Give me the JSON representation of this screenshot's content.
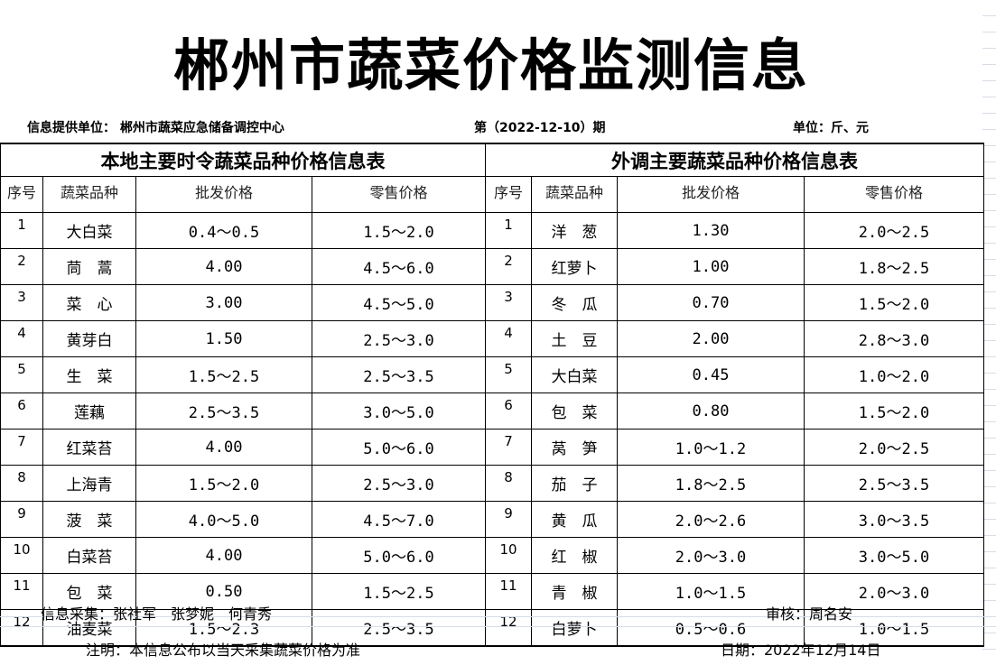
{
  "title": "郴州市蔬菜价格监测信息",
  "provider": "信息提供单位：  郴州市蔬菜应急储备调控中心",
  "period": "第（2022-12-10）期",
  "unit": "单位：斤、元",
  "local": {
    "title": "本地主要时令蔬菜品种价格信息表",
    "headers": [
      "序号",
      "蔬菜品种",
      "批发价格",
      "零售价格"
    ],
    "rows": [
      [
        "1",
        "大白菜",
        "0.4～0.5",
        "1.5～2.0"
      ],
      [
        "2",
        "茼　蒿",
        "4.00",
        "4.5～6.0"
      ],
      [
        "3",
        "菜　心",
        "3.00",
        "4.5～5.0"
      ],
      [
        "4",
        "黄芽白",
        "1.50",
        "2.5～3.0"
      ],
      [
        "5",
        "生　菜",
        "1.5～2.5",
        "2.5～3.5"
      ],
      [
        "6",
        "莲藕",
        "2.5～3.5",
        "3.0～5.0"
      ],
      [
        "7",
        "红菜苔",
        "4.00",
        "5.0～6.0"
      ],
      [
        "8",
        "上海青",
        "1.5～2.0",
        "2.5～3.0"
      ],
      [
        "9",
        "菠　菜",
        "4.0～5.0",
        "4.5～7.0"
      ],
      [
        "10",
        "白菜苔",
        "4.00",
        "5.0～6.0"
      ],
      [
        "11",
        "包　菜",
        "0.50",
        "1.5～2.5"
      ],
      [
        "12",
        "油麦菜",
        "1.5～2.3",
        "2.5～3.5"
      ]
    ]
  },
  "external": {
    "title": "外调主要蔬菜品种价格信息表",
    "headers": [
      "序号",
      "蔬菜品种",
      "批发价格",
      "零售价格"
    ],
    "rows": [
      [
        "1",
        "洋　葱",
        "1.30",
        "2.0～2.5"
      ],
      [
        "2",
        "红萝卜",
        "1.00",
        "1.8～2.5"
      ],
      [
        "3",
        "冬　瓜",
        "0.70",
        "1.5～2.0"
      ],
      [
        "4",
        "土　豆",
        "2.00",
        "2.8～3.0"
      ],
      [
        "5",
        "大白菜",
        "0.45",
        "1.0～2.0"
      ],
      [
        "6",
        "包　菜",
        "0.80",
        "1.5～2.0"
      ],
      [
        "7",
        "莴　笋",
        "1.0～1.2",
        "2.0～2.5"
      ],
      [
        "8",
        "茄　子",
        "1.8～2.5",
        "2.5～3.5"
      ],
      [
        "9",
        "黄　瓜",
        "2.0～2.6",
        "3.0～3.5"
      ],
      [
        "10",
        "红　椒",
        "2.0～3.0",
        "3.0～5.0"
      ],
      [
        "11",
        "青　椒",
        "1.0～1.5",
        "2.0～3.0"
      ],
      [
        "12",
        "白萝卜",
        "0.5～0.6",
        "1.0～1.5"
      ]
    ]
  },
  "collectors": "信息采集：张社军　张梦妮　何青秀",
  "reviewer": "审核：周名安",
  "note": "注明：本信息公布以当天采集蔬菜价格为准",
  "date": "日期：2022年12月14日"
}
